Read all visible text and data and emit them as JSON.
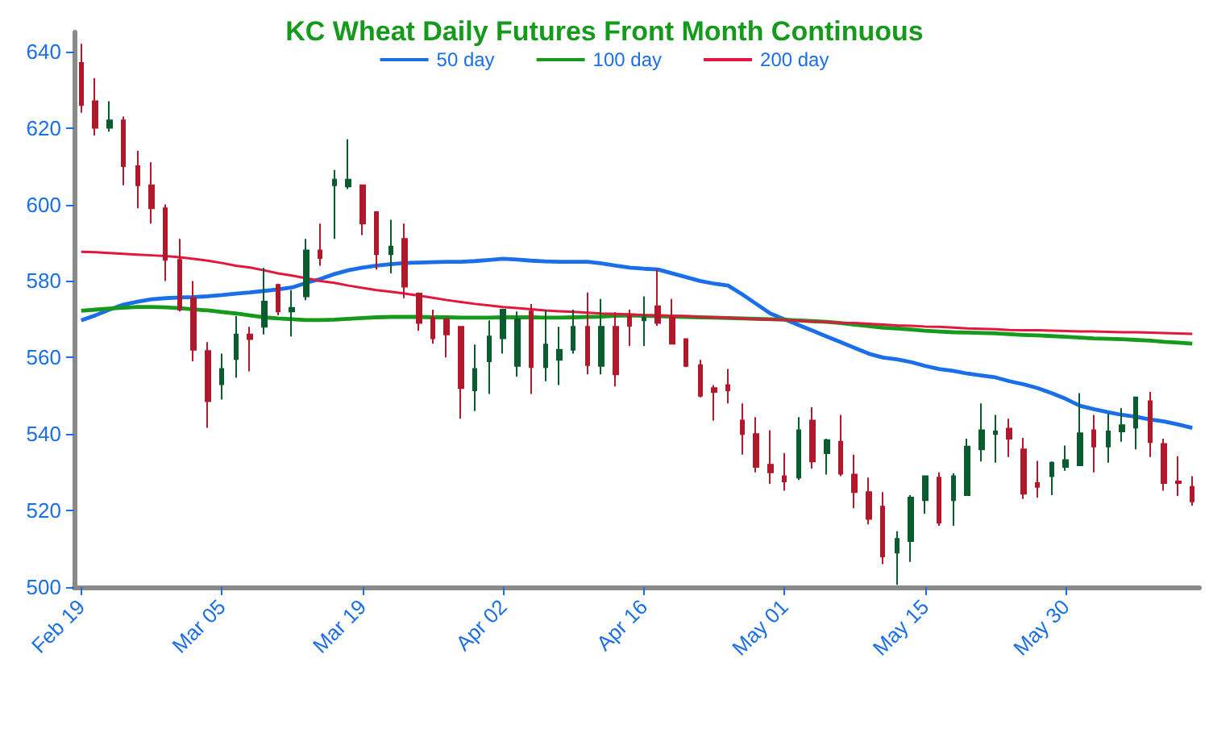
{
  "chart_data": {
    "type": "candlestick",
    "title": "KC Wheat Daily Futures Front Month Continuous",
    "categories": [
      "Feb 19",
      null,
      null,
      null,
      null,
      null,
      null,
      null,
      null,
      null,
      "Mar 05",
      null,
      null,
      null,
      null,
      null,
      null,
      null,
      null,
      null,
      "Mar 19",
      null,
      null,
      null,
      null,
      null,
      null,
      null,
      null,
      null,
      "Apr 02",
      null,
      null,
      null,
      null,
      null,
      null,
      null,
      null,
      null,
      "Apr 16",
      null,
      null,
      null,
      null,
      null,
      null,
      null,
      null,
      null,
      "May 01",
      null,
      null,
      null,
      null,
      null,
      null,
      null,
      null,
      null,
      "May 15",
      null,
      null,
      null,
      null,
      null,
      null,
      null,
      null,
      null,
      "May 30",
      null,
      null,
      null,
      null,
      null,
      null,
      null,
      null,
      null
    ],
    "ohlc": [
      [
        637,
        642,
        624,
        626
      ],
      [
        627,
        633,
        618,
        620
      ],
      [
        620,
        627,
        619,
        622
      ],
      [
        622,
        623,
        605,
        610
      ],
      [
        610,
        614,
        599,
        605
      ],
      [
        605,
        611,
        595,
        599
      ],
      [
        599,
        600,
        580,
        585.5
      ],
      [
        585.5,
        591,
        572,
        572.5
      ],
      [
        575.5,
        580,
        559,
        562
      ],
      [
        561.7,
        564,
        541.6,
        548.6
      ],
      [
        553,
        561,
        549,
        557
      ],
      [
        559.6,
        570.8,
        554.7,
        566
      ],
      [
        566,
        568,
        556.4,
        564.8
      ],
      [
        568,
        583.4,
        566,
        574.6
      ],
      [
        579,
        579.3,
        571,
        572
      ],
      [
        572,
        577.6,
        565.5,
        573
      ],
      [
        576,
        591,
        575,
        588
      ],
      [
        588,
        595,
        584,
        586
      ],
      [
        605,
        609,
        591,
        606.5
      ],
      [
        604.7,
        617,
        604,
        606.5
      ],
      [
        605,
        605,
        592,
        595
      ],
      [
        598,
        598,
        583,
        587
      ],
      [
        587,
        596,
        582,
        589
      ],
      [
        591,
        595,
        575.5,
        578.5
      ],
      [
        576.7,
        577,
        567,
        569
      ],
      [
        570.4,
        572.5,
        563.6,
        565
      ],
      [
        570,
        570.4,
        560,
        566
      ],
      [
        568,
        568,
        544,
        552
      ],
      [
        551.4,
        563.4,
        546,
        557
      ],
      [
        559,
        569.7,
        550.5,
        565.5
      ],
      [
        565,
        572.5,
        561,
        572.5
      ],
      [
        557.8,
        572,
        555,
        570
      ],
      [
        572,
        574,
        550.5,
        557.5
      ],
      [
        557.5,
        572.5,
        553.8,
        563.4
      ],
      [
        559.4,
        568,
        552.8,
        562
      ],
      [
        562,
        572.5,
        561,
        568
      ],
      [
        568,
        577,
        555.6,
        558
      ],
      [
        557.8,
        575.3,
        555.6,
        568
      ],
      [
        568,
        571.8,
        552.4,
        555.6
      ],
      [
        570.8,
        572.5,
        563,
        568.3
      ],
      [
        569.7,
        576,
        563,
        570.4
      ],
      [
        573.4,
        583,
        568.3,
        569
      ],
      [
        570.4,
        575.3,
        563.4,
        563.6
      ],
      [
        564.8,
        565,
        557.5,
        557.8
      ],
      [
        558,
        559.4,
        549.6,
        550
      ],
      [
        552,
        552.8,
        543.5,
        551
      ],
      [
        552.8,
        557,
        548,
        551.4
      ],
      [
        543.5,
        548,
        534.6,
        540
      ],
      [
        540,
        544.4,
        530,
        531.4
      ],
      [
        532,
        541,
        527,
        530
      ],
      [
        529,
        535,
        525.2,
        527.6
      ],
      [
        528.6,
        544.4,
        528,
        541
      ],
      [
        543.5,
        547,
        531,
        532.8
      ],
      [
        535,
        538.8,
        529.4,
        538.4
      ],
      [
        538,
        545,
        529,
        529.6
      ],
      [
        529.4,
        534.6,
        520.6,
        524.8
      ],
      [
        524.8,
        528.6,
        516.4,
        517.8
      ],
      [
        521,
        524.8,
        506,
        508
      ],
      [
        509,
        514.6,
        500.6,
        512.6
      ],
      [
        512,
        524,
        506.6,
        523.4
      ],
      [
        522.7,
        529,
        519.2,
        529
      ],
      [
        528.6,
        530,
        516,
        516.8
      ],
      [
        522.7,
        529.7,
        516,
        529
      ],
      [
        524,
        538.8,
        523.8,
        536.7
      ],
      [
        536,
        548,
        532.8,
        541
      ],
      [
        540,
        545,
        532.5,
        540.7
      ],
      [
        541.4,
        544,
        534,
        538.8
      ],
      [
        536,
        539,
        523,
        524.4
      ],
      [
        527.2,
        533,
        523.4,
        526.2
      ],
      [
        529,
        532.8,
        524,
        532.5
      ],
      [
        531.4,
        537,
        530.4,
        533.2
      ],
      [
        531.8,
        550.7,
        531.8,
        540.2
      ],
      [
        541,
        545,
        530,
        536.7
      ],
      [
        536.7,
        545.3,
        532.5,
        540.7
      ],
      [
        540.7,
        546.8,
        538,
        542.3
      ],
      [
        541.7,
        549.6,
        536,
        549.6
      ],
      [
        548.6,
        551,
        534,
        537.9
      ],
      [
        537.4,
        538.8,
        525.2,
        527.2
      ],
      [
        527.6,
        534.2,
        523.8,
        527.2
      ],
      [
        526.2,
        529,
        521.3,
        522.4
      ]
    ],
    "colors": [
      "#b0182c",
      "#b0182c",
      "#0a5c2e",
      "#b0182c",
      "#b0182c",
      "#b0182c",
      "#b0182c",
      "#b0182c",
      "#b0182c",
      "#b0182c",
      "#0a5c2e",
      "#0a5c2e",
      "#b0182c",
      "#0a5c2e",
      "#b0182c",
      "#0a5c2e",
      "#0a5c2e",
      "#b0182c",
      "#0a5c2e",
      "#0a5c2e",
      "#b0182c",
      "#b0182c",
      "#0a5c2e",
      "#b0182c",
      "#b0182c",
      "#b0182c",
      "#b0182c",
      "#b0182c",
      "#0a5c2e",
      "#0a5c2e",
      "#0a5c2e",
      "#0a5c2e",
      "#b0182c",
      "#0a5c2e",
      "#0a5c2e",
      "#0a5c2e",
      "#b0182c",
      "#0a5c2e",
      "#b0182c",
      "#b0182c",
      "#0a5c2e",
      "#b0182c",
      "#b0182c",
      "#b0182c",
      "#b0182c",
      "#b0182c",
      "#b0182c",
      "#b0182c",
      "#b0182c",
      "#b0182c",
      "#b0182c",
      "#0a5c2e",
      "#b0182c",
      "#0a5c2e",
      "#b0182c",
      "#b0182c",
      "#b0182c",
      "#b0182c",
      "#0a5c2e",
      "#0a5c2e",
      "#0a5c2e",
      "#b0182c",
      "#0a5c2e",
      "#0a5c2e",
      "#0a5c2e",
      "#0a5c2e",
      "#b0182c",
      "#b0182c",
      "#b0182c",
      "#0a5c2e",
      "#0a5c2e",
      "#0a5c2e",
      "#b0182c",
      "#0a5c2e",
      "#0a5c2e",
      "#0a5c2e",
      "#b0182c",
      "#b0182c",
      "#b0182c",
      "#b0182c"
    ],
    "series": [
      {
        "type": "line",
        "name": "50 day",
        "color": "#1a6fe8",
        "values": [
          569.7,
          571,
          572.5,
          573.8,
          574.6,
          575.2,
          575.5,
          575.7,
          575.8,
          576,
          576.3,
          576.7,
          577,
          577.4,
          577.8,
          578.3,
          579.5,
          580.5,
          581.8,
          582.8,
          583.5,
          584,
          584.4,
          584.7,
          584.8,
          584.9,
          585,
          585,
          585.2,
          585.5,
          585.8,
          585.6,
          585.3,
          585.1,
          585,
          585,
          585,
          584.6,
          584,
          583.5,
          583.2,
          583,
          582,
          581,
          580,
          579.3,
          578.8,
          576.5,
          574,
          571.5,
          570,
          568.5,
          567,
          565.5,
          564,
          562.5,
          561,
          560,
          559.5,
          558.8,
          557.8,
          557,
          556.5,
          555.8,
          555.3,
          554.8,
          553.8,
          553,
          552,
          550.7,
          549.2,
          547.4,
          546.5,
          545.7,
          545,
          544.5,
          543.8,
          543.3,
          542.5,
          541.6
        ]
      },
      {
        "type": "line",
        "name": "100 day",
        "color": "#159a1c",
        "values": [
          572.2,
          572.5,
          572.8,
          573,
          573.2,
          573.2,
          573.1,
          572.9,
          572.6,
          572.3,
          571.9,
          571.5,
          571,
          570.5,
          570.2,
          570,
          569.8,
          569.8,
          569.9,
          570.1,
          570.3,
          570.5,
          570.6,
          570.6,
          570.6,
          570.5,
          570.5,
          570.4,
          570.4,
          570.4,
          570.5,
          570.5,
          570.5,
          570.4,
          570.4,
          570.5,
          570.6,
          570.7,
          570.9,
          571,
          570.9,
          570.8,
          570.7,
          570.6,
          570.5,
          570.4,
          570.3,
          570.2,
          570.1,
          570,
          569.9,
          569.7,
          569.5,
          569.3,
          569,
          568.6,
          568.2,
          567.8,
          567.6,
          567.3,
          567,
          566.8,
          566.6,
          566.5,
          566.4,
          566.3,
          566.1,
          565.9,
          565.8,
          565.6,
          565.4,
          565.2,
          565,
          564.9,
          564.8,
          564.6,
          564.4,
          564.1,
          563.9,
          563.6
        ]
      },
      {
        "type": "line",
        "name": "200 day",
        "color": "#e3173e",
        "values": [
          587.6,
          587.5,
          587.3,
          587.1,
          586.9,
          586.7,
          586.5,
          586.2,
          585.8,
          585.3,
          584.7,
          584,
          583.5,
          582.8,
          582,
          581.4,
          580.7,
          580,
          579.5,
          578.8,
          578.2,
          577.6,
          577.2,
          576.7,
          576.2,
          575.6,
          575,
          574.5,
          574,
          573.6,
          573.2,
          572.9,
          572.6,
          572.3,
          572.1,
          571.9,
          571.7,
          571.5,
          571.4,
          571.3,
          571.1,
          571,
          570.9,
          570.8,
          570.6,
          570.5,
          570.4,
          570.2,
          570,
          569.9,
          569.8,
          569.6,
          569.4,
          569.3,
          569.1,
          569,
          568.8,
          568.6,
          568.4,
          568.3,
          568.1,
          568,
          567.8,
          567.6,
          567.5,
          567.4,
          567.2,
          567.1,
          567.1,
          567,
          566.9,
          566.8,
          566.8,
          566.7,
          566.6,
          566.6,
          566.5,
          566.4,
          566.3,
          566.2
        ]
      }
    ],
    "ylim": [
      500,
      645
    ],
    "yticks": [
      500,
      520,
      540,
      560,
      580,
      600,
      620,
      640
    ],
    "legend": "top",
    "grid": false,
    "marker": "none"
  }
}
